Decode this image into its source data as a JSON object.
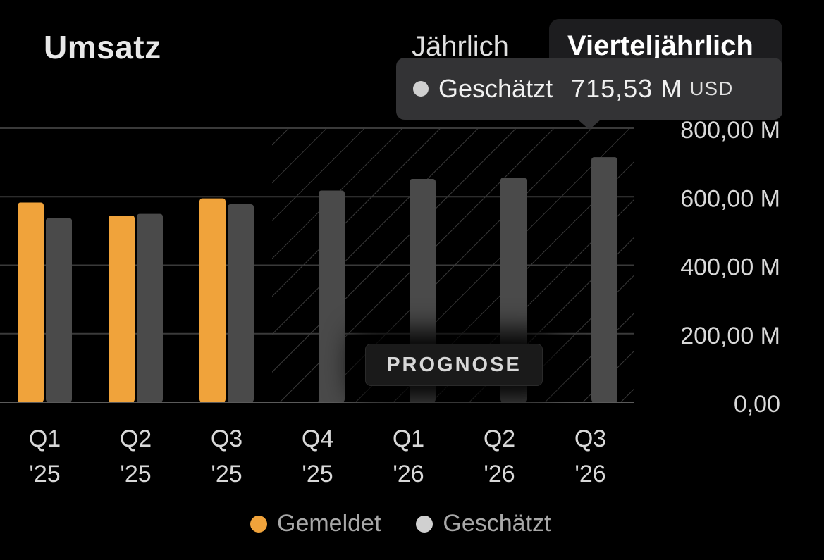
{
  "header": {
    "title": "Umsatz"
  },
  "period_toggle": {
    "yearly": "Jährlich",
    "quarterly": "Vierteljährlich",
    "selected": "quarterly"
  },
  "tooltip": {
    "label": "Geschätzt",
    "value": "715,53 M",
    "unit": "USD"
  },
  "forecast_badge": "PROGNOSE",
  "colors": {
    "reported": "#f0a33b",
    "estimated": "#4a4a4a",
    "estimated_dot": "#d0d0d0",
    "grid": "#3a3a3a"
  },
  "chart_data": {
    "type": "bar",
    "title": "Umsatz",
    "categories": [
      {
        "q": "Q1",
        "y": "'25"
      },
      {
        "q": "Q2",
        "y": "'25"
      },
      {
        "q": "Q3",
        "y": "'25"
      },
      {
        "q": "Q4",
        "y": "'25"
      },
      {
        "q": "Q1",
        "y": "'26"
      },
      {
        "q": "Q2",
        "y": "'26"
      },
      {
        "q": "Q3",
        "y": "'26"
      }
    ],
    "series": [
      {
        "name": "Gemeldet",
        "values": [
          583,
          545,
          595,
          null,
          null,
          null,
          null
        ]
      },
      {
        "name": "Geschätzt",
        "values": [
          538,
          550,
          578,
          618,
          652,
          656,
          715.53
        ]
      }
    ],
    "forecast_from_index": 3,
    "ylim": [
      0,
      800
    ],
    "y_ticks": [
      0,
      200,
      400,
      600,
      800
    ],
    "y_tick_labels": [
      "0,00",
      "200,00 M",
      "400,00 M",
      "600,00 M",
      "800,00 M"
    ],
    "legend": [
      "Gemeldet",
      "Geschätzt"
    ],
    "legend_position": "bottom-center"
  }
}
